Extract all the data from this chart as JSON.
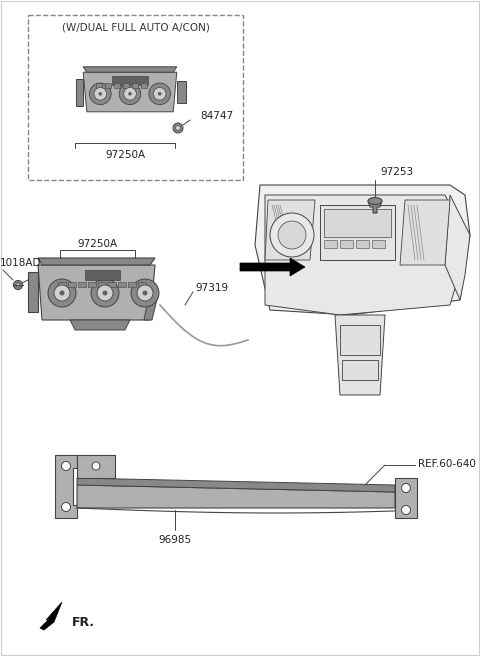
{
  "bg_color": "#ffffff",
  "line_color": "#444444",
  "dark_color": "#222222",
  "gray1": "#b0b0b0",
  "gray2": "#888888",
  "gray3": "#d0d0d0",
  "gray4": "#606060",
  "labels": {
    "dual_box": "(W/DUAL FULL AUTO A/CON)",
    "part_84747": "84747",
    "part_97250A_box": "97250A",
    "part_97250A_main": "97250A",
    "part_97319": "97319",
    "part_1018AD": "1018AD",
    "part_97253": "97253",
    "part_96985": "96985",
    "ref_60_640": "REF.60-640",
    "fr_label": "FR."
  },
  "figsize": [
    4.8,
    6.56
  ],
  "dpi": 100
}
